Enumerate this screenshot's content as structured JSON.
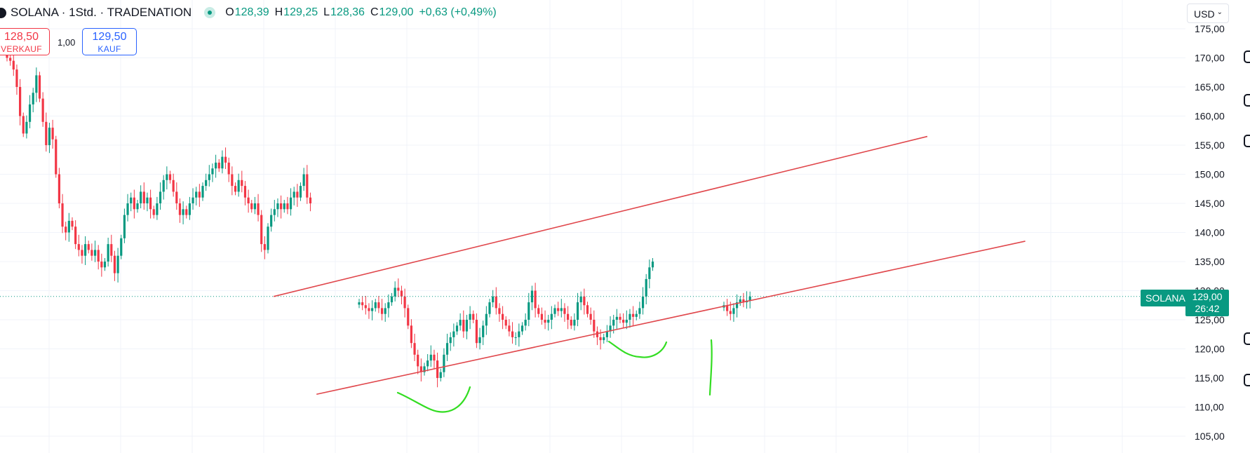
{
  "header": {
    "symbol_title": "SOLANA · 1Std. · TRADENATION",
    "ohlc": {
      "open_label": "O",
      "open": "128,39",
      "high_label": "H",
      "high": "129,25",
      "low_label": "L",
      "low": "128,36",
      "close_label": "C",
      "close": "129,00"
    },
    "change": "+0,63 (+0,49%)"
  },
  "trade": {
    "sell_price": "128,50",
    "sell_label": "VERKAUF",
    "quantity": "1,00",
    "buy_price": "129,50",
    "buy_label": "KAUF"
  },
  "currency": {
    "value": "USD"
  },
  "price_tag": {
    "symbol": "SOLANA",
    "price": "129,00",
    "countdown": "26:42"
  },
  "colors": {
    "up": "#089981",
    "down": "#f23645",
    "trendline": "#e0474c",
    "annotation": "#33dd22",
    "grid": "#f0f3fa",
    "buy": "#2962ff"
  },
  "chart_data": {
    "type": "candlestick",
    "y_ticks": [
      "105,00",
      "110,00",
      "115,00",
      "120,00",
      "125,00",
      "130,00",
      "135,00",
      "140,00",
      "145,00",
      "150,00",
      "155,00",
      "160,00",
      "165,00",
      "170,00",
      "175,00"
    ],
    "ylim": [
      102,
      177
    ],
    "grid": true,
    "last_price": 129.0,
    "series": [
      {
        "segment": "first",
        "closes": [
          170,
          169.5,
          168,
          165,
          160,
          157,
          159,
          162,
          164,
          167,
          163,
          159,
          155,
          158,
          156,
          150,
          145,
          141,
          140,
          142,
          141,
          138,
          137,
          136,
          138,
          137,
          136,
          137,
          135,
          134,
          135,
          138,
          136,
          133,
          136,
          139,
          143,
          145,
          146,
          144,
          145,
          147,
          145,
          146,
          144,
          143,
          145,
          147,
          149,
          150,
          149,
          147,
          145,
          143,
          144,
          143,
          145,
          146,
          147,
          146,
          148,
          149,
          150,
          151,
          152,
          151,
          153,
          152,
          150,
          148,
          147,
          149,
          148,
          146,
          145,
          144,
          145,
          143,
          138,
          137,
          141,
          143,
          144,
          145,
          144,
          145,
          144,
          146,
          147,
          146,
          148,
          150,
          146,
          145
        ]
      },
      {
        "segment": "second",
        "closes": [
          128,
          127.5,
          127,
          126.5,
          127,
          128,
          127,
          126,
          127,
          128,
          129,
          130.5,
          130,
          129,
          127,
          124,
          121,
          119,
          117,
          116,
          117,
          118,
          119,
          118,
          115,
          116,
          119,
          121,
          122,
          123,
          124,
          125,
          123,
          125,
          126,
          125,
          121,
          122,
          124,
          126,
          128,
          129,
          127,
          126,
          125,
          124,
          123,
          122,
          122,
          123,
          124,
          125,
          128,
          130,
          127,
          126,
          125,
          124.5,
          125,
          126,
          127,
          126.5,
          127,
          126,
          125,
          124,
          125,
          128,
          129,
          127.5,
          126,
          125,
          123,
          122,
          121.5,
          122,
          123,
          124,
          125,
          125.5,
          125,
          124.5,
          125,
          126,
          125.5,
          126,
          127,
          129,
          132,
          134,
          135
        ]
      },
      {
        "segment": "third",
        "closes": [
          127.5,
          126.5,
          126,
          127,
          128,
          128.5,
          128,
          128.3,
          129
        ]
      }
    ],
    "trendlines": [
      {
        "from": [
          1,
          129
        ],
        "to": [
          12,
          156.5
        ]
      },
      {
        "from": [
          1.6,
          112.2
        ],
        "to": [
          13.3,
          138.5
        ]
      }
    ]
  }
}
